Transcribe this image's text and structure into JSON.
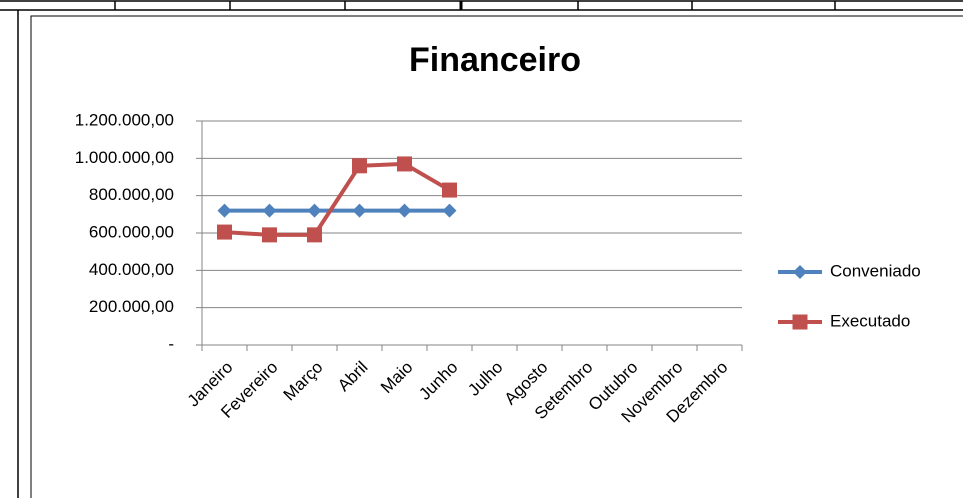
{
  "chart_data": {
    "type": "line",
    "title": "Financeiro",
    "categories": [
      "Janeiro",
      "Fevereiro",
      "Março",
      "Abril",
      "Maio",
      "Junho",
      "Julho",
      "Agosto",
      "Setembro",
      "Outubro",
      "Novembro",
      "Dezembro"
    ],
    "series": [
      {
        "name": "Conveniado",
        "color": "#4f81bd",
        "values": [
          720000,
          720000,
          720000,
          720000,
          720000,
          720000,
          null,
          null,
          null,
          null,
          null,
          null
        ]
      },
      {
        "name": "Executado",
        "color": "#c0504d",
        "values": [
          605000,
          590000,
          590000,
          960000,
          970000,
          830000,
          null,
          null,
          null,
          null,
          null,
          null
        ]
      }
    ],
    "ylim": [
      0,
      1200000
    ],
    "yticks": [
      {
        "value": 0,
        "label": "-"
      },
      {
        "value": 200000,
        "label": "200.000,00"
      },
      {
        "value": 400000,
        "label": "400.000,00"
      },
      {
        "value": 600000,
        "label": "600.000,00"
      },
      {
        "value": 800000,
        "label": "800.000,00"
      },
      {
        "value": 1000000,
        "label": "1.000.000,00"
      },
      {
        "value": 1200000,
        "label": "1.200.000,00"
      }
    ],
    "grid": true,
    "legend": "right"
  }
}
